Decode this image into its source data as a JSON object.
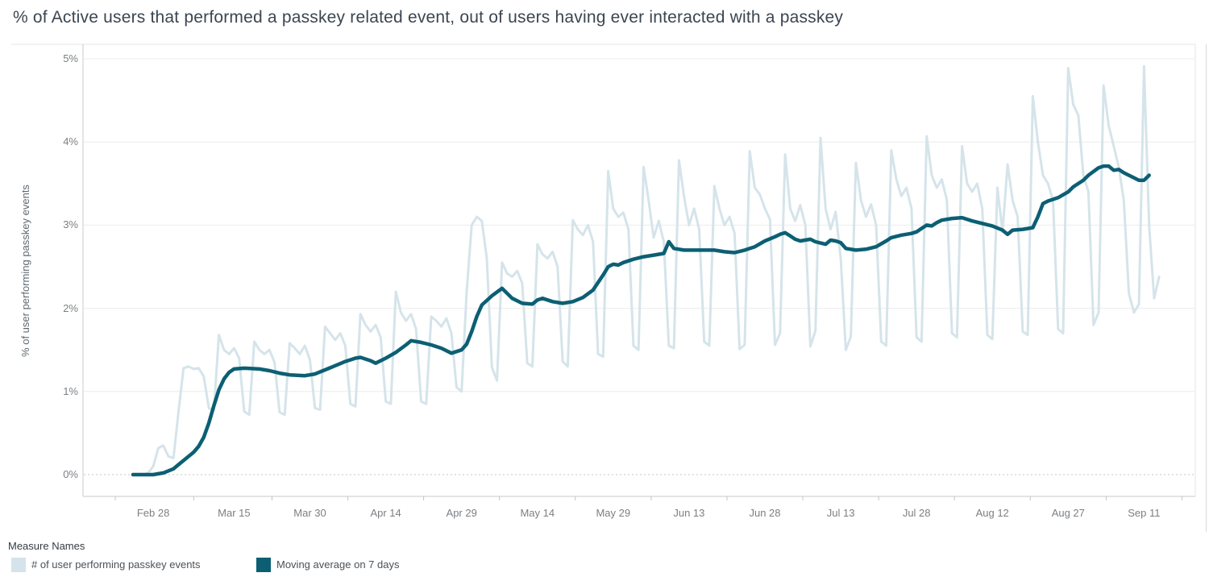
{
  "title": "% of Active users that performed a passkey related event, out of users having ever interacted with a passkey",
  "y_axis": {
    "label": "% of user performing passkey events",
    "ticks": [
      "0%",
      "1%",
      "2%",
      "3%",
      "4%",
      "5%"
    ]
  },
  "x_axis": {
    "labels": [
      "Feb 28",
      "Mar 15",
      "Mar 30",
      "Apr 14",
      "Apr 29",
      "May 14",
      "May 29",
      "Jun 13",
      "Jun 28",
      "Jul 13",
      "Jul 28",
      "Aug 12",
      "Aug 27",
      "Sep 11"
    ]
  },
  "legend": {
    "title": "Measure Names",
    "items": [
      {
        "label": "# of user performing passkey events",
        "color": "#d5e4ea"
      },
      {
        "label": "Moving average on 7 days",
        "color": "#0c5f73"
      }
    ]
  },
  "colors": {
    "daily_series": "#d5e4ea",
    "moving_average": "#0c5f73",
    "gridline": "#ececec",
    "zero_line": "#c7c7c7",
    "axis_line": "#c8c8c8",
    "tick_text": "#7b7f83"
  },
  "chart_data": {
    "type": "line",
    "title": "% of Active users that performed a passkey related event, out of users having ever interacted with a passkey",
    "ylabel": "% of user performing passkey events",
    "ylim": [
      0,
      5
    ],
    "y_tick_percent": [
      0,
      1,
      2,
      3,
      4,
      5
    ],
    "grid": "horizontal",
    "legend_position": "bottom-left",
    "x_unit": "days since Feb 24",
    "x0_date": "Feb 24",
    "x_tick_days": [
      4,
      20,
      35,
      50,
      65,
      80,
      95,
      110,
      125,
      140,
      155,
      170,
      185,
      200
    ],
    "x_tick_labels": [
      "Feb 28",
      "Mar 15",
      "Mar 30",
      "Apr 14",
      "Apr 29",
      "May 14",
      "May 29",
      "Jun 13",
      "Jun 28",
      "Jul 13",
      "Jul 28",
      "Aug 12",
      "Aug 27",
      "Sep 11"
    ],
    "series": [
      {
        "name": "# of user performing passkey events",
        "color": "#d5e4ea",
        "cadence": "daily",
        "values": [
          0,
          0,
          0,
          0.02,
          0.1,
          0.32,
          0.35,
          0.22,
          0.2,
          0.75,
          1.28,
          1.3,
          1.27,
          1.28,
          1.18,
          0.8,
          0.78,
          1.68,
          1.5,
          1.45,
          1.52,
          1.4,
          0.76,
          0.72,
          1.6,
          1.5,
          1.45,
          1.5,
          1.35,
          0.75,
          0.72,
          1.58,
          1.52,
          1.45,
          1.55,
          1.38,
          0.8,
          0.78,
          1.78,
          1.7,
          1.62,
          1.7,
          1.55,
          0.85,
          0.82,
          1.93,
          1.8,
          1.72,
          1.8,
          1.65,
          0.88,
          0.85,
          2.2,
          1.95,
          1.85,
          1.93,
          1.75,
          0.88,
          0.85,
          1.9,
          1.85,
          1.78,
          1.88,
          1.7,
          1.05,
          1.0,
          2.2,
          3.0,
          3.1,
          3.05,
          2.6,
          1.29,
          1.13,
          2.55,
          2.42,
          2.38,
          2.45,
          2.3,
          1.34,
          1.3,
          2.77,
          2.65,
          2.6,
          2.68,
          2.5,
          1.36,
          1.3,
          3.06,
          2.95,
          2.88,
          3.0,
          2.8,
          1.45,
          1.42,
          3.65,
          3.2,
          3.1,
          3.15,
          2.95,
          1.55,
          1.5,
          3.7,
          3.3,
          2.85,
          3.05,
          2.8,
          1.55,
          1.52,
          3.78,
          3.35,
          3.0,
          3.2,
          2.95,
          1.6,
          1.55,
          3.47,
          3.2,
          3.0,
          3.1,
          2.9,
          1.51,
          1.56,
          3.89,
          3.45,
          3.37,
          3.2,
          3.07,
          1.56,
          1.7,
          3.85,
          3.2,
          3.05,
          3.24,
          3.0,
          1.54,
          1.73,
          4.05,
          3.2,
          2.95,
          3.16,
          2.6,
          1.5,
          1.66,
          3.75,
          3.3,
          3.1,
          3.25,
          3.0,
          1.6,
          1.55,
          3.9,
          3.55,
          3.35,
          3.45,
          3.2,
          1.65,
          1.6,
          4.07,
          3.6,
          3.45,
          3.55,
          3.3,
          1.7,
          1.65,
          3.95,
          3.5,
          3.4,
          3.5,
          3.2,
          1.68,
          1.63,
          3.45,
          2.92,
          3.73,
          3.3,
          3.1,
          1.72,
          1.68,
          4.55,
          4.0,
          3.6,
          3.5,
          3.3,
          1.75,
          1.7,
          4.89,
          4.45,
          4.32,
          3.6,
          3.4,
          1.8,
          1.95,
          4.68,
          4.2,
          3.95,
          3.7,
          3.3,
          2.18,
          1.95,
          2.05,
          4.91,
          3.0,
          2.12,
          2.38
        ]
      },
      {
        "name": "Moving average on 7 days",
        "color": "#0c5f73",
        "cadence": "anchor points [day, value]",
        "anchors": [
          [
            0,
            0
          ],
          [
            4,
            0
          ],
          [
            6,
            0.02
          ],
          [
            8,
            0.07
          ],
          [
            9,
            0.12
          ],
          [
            10,
            0.17
          ],
          [
            11,
            0.22
          ],
          [
            12,
            0.27
          ],
          [
            13,
            0.34
          ],
          [
            14,
            0.45
          ],
          [
            15,
            0.62
          ],
          [
            16,
            0.83
          ],
          [
            17,
            1.02
          ],
          [
            18,
            1.15
          ],
          [
            19,
            1.23
          ],
          [
            20,
            1.27
          ],
          [
            22,
            1.28
          ],
          [
            25,
            1.27
          ],
          [
            27,
            1.25
          ],
          [
            29,
            1.22
          ],
          [
            31,
            1.2
          ],
          [
            34,
            1.19
          ],
          [
            36,
            1.21
          ],
          [
            38,
            1.26
          ],
          [
            40,
            1.31
          ],
          [
            42,
            1.36
          ],
          [
            44,
            1.4
          ],
          [
            45,
            1.41
          ],
          [
            47,
            1.37
          ],
          [
            48,
            1.34
          ],
          [
            50,
            1.4
          ],
          [
            52,
            1.47
          ],
          [
            54,
            1.56
          ],
          [
            55,
            1.61
          ],
          [
            57,
            1.59
          ],
          [
            59,
            1.56
          ],
          [
            61,
            1.52
          ],
          [
            63,
            1.46
          ],
          [
            65,
            1.5
          ],
          [
            66,
            1.57
          ],
          [
            67,
            1.72
          ],
          [
            68,
            1.9
          ],
          [
            69,
            2.04
          ],
          [
            71,
            2.15
          ],
          [
            73,
            2.24
          ],
          [
            75,
            2.12
          ],
          [
            77,
            2.06
          ],
          [
            79,
            2.05
          ],
          [
            80,
            2.1
          ],
          [
            81,
            2.12
          ],
          [
            83,
            2.08
          ],
          [
            85,
            2.06
          ],
          [
            87,
            2.08
          ],
          [
            89,
            2.13
          ],
          [
            91,
            2.22
          ],
          [
            92,
            2.31
          ],
          [
            93,
            2.4
          ],
          [
            94,
            2.5
          ],
          [
            95,
            2.53
          ],
          [
            96,
            2.52
          ],
          [
            97,
            2.55
          ],
          [
            99,
            2.59
          ],
          [
            101,
            2.62
          ],
          [
            103,
            2.64
          ],
          [
            105,
            2.66
          ],
          [
            106,
            2.8
          ],
          [
            107,
            2.72
          ],
          [
            109,
            2.7
          ],
          [
            115,
            2.7
          ],
          [
            117,
            2.68
          ],
          [
            119,
            2.67
          ],
          [
            121,
            2.7
          ],
          [
            123,
            2.74
          ],
          [
            125,
            2.81
          ],
          [
            127,
            2.86
          ],
          [
            128,
            2.89
          ],
          [
            129,
            2.91
          ],
          [
            130,
            2.87
          ],
          [
            131,
            2.83
          ],
          [
            132,
            2.81
          ],
          [
            134,
            2.83
          ],
          [
            135,
            2.8
          ],
          [
            137,
            2.77
          ],
          [
            138,
            2.82
          ],
          [
            139,
            2.81
          ],
          [
            140,
            2.79
          ],
          [
            141,
            2.72
          ],
          [
            143,
            2.7
          ],
          [
            145,
            2.71
          ],
          [
            147,
            2.74
          ],
          [
            149,
            2.81
          ],
          [
            150,
            2.85
          ],
          [
            152,
            2.88
          ],
          [
            154,
            2.9
          ],
          [
            155,
            2.92
          ],
          [
            156,
            2.96
          ],
          [
            157,
            3.0
          ],
          [
            158,
            2.99
          ],
          [
            159,
            3.03
          ],
          [
            160,
            3.06
          ],
          [
            162,
            3.08
          ],
          [
            164,
            3.09
          ],
          [
            166,
            3.05
          ],
          [
            168,
            3.02
          ],
          [
            170,
            2.99
          ],
          [
            172,
            2.94
          ],
          [
            173,
            2.89
          ],
          [
            174,
            2.94
          ],
          [
            176,
            2.95
          ],
          [
            178,
            2.97
          ],
          [
            179,
            3.1
          ],
          [
            180,
            3.26
          ],
          [
            181,
            3.29
          ],
          [
            183,
            3.33
          ],
          [
            185,
            3.4
          ],
          [
            186,
            3.46
          ],
          [
            187,
            3.5
          ],
          [
            188,
            3.54
          ],
          [
            189,
            3.6
          ],
          [
            191,
            3.69
          ],
          [
            192,
            3.71
          ],
          [
            193,
            3.71
          ],
          [
            194,
            3.66
          ],
          [
            195,
            3.67
          ],
          [
            196,
            3.63
          ],
          [
            197,
            3.6
          ],
          [
            198,
            3.57
          ],
          [
            199,
            3.54
          ],
          [
            200,
            3.54
          ],
          [
            201,
            3.6
          ]
        ]
      }
    ]
  }
}
